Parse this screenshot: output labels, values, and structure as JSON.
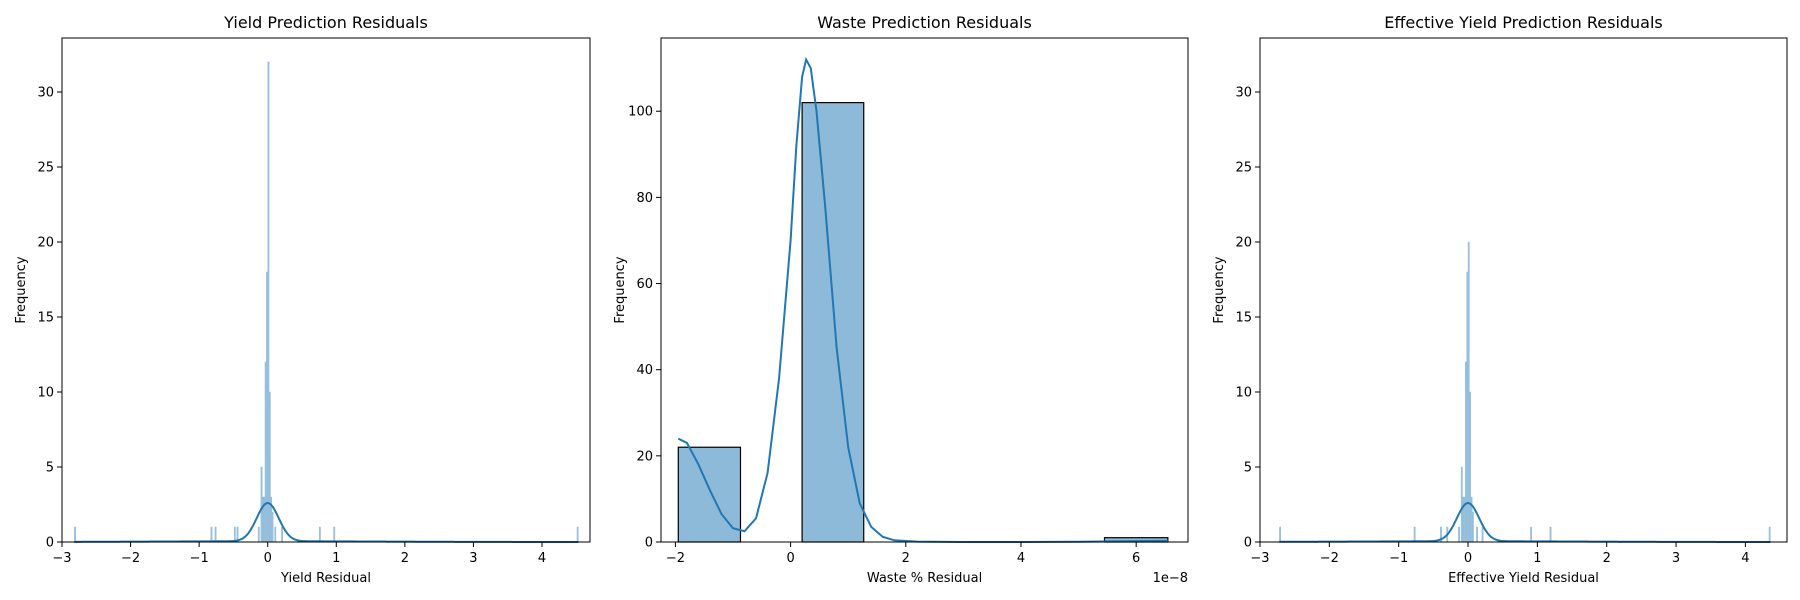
{
  "chart_data": [
    {
      "type": "histogram",
      "title": "Yield Prediction Residuals",
      "xlabel": "Yield Residual",
      "ylabel": "Frequency",
      "xlim": [
        -3.0,
        4.7
      ],
      "ylim": [
        0,
        33.6
      ],
      "xticks": [
        -3,
        -2,
        -1,
        0,
        1,
        2,
        3,
        4
      ],
      "yticks": [
        0,
        5,
        10,
        15,
        20,
        25,
        30
      ],
      "bars": [
        {
          "x0": -2.82,
          "x1": -2.8,
          "count": 1
        },
        {
          "x0": -0.83,
          "x1": -0.81,
          "count": 1
        },
        {
          "x0": -0.77,
          "x1": -0.75,
          "count": 1
        },
        {
          "x0": -0.49,
          "x1": -0.47,
          "count": 1
        },
        {
          "x0": -0.45,
          "x1": -0.43,
          "count": 1
        },
        {
          "x0": -0.14,
          "x1": -0.12,
          "count": 1
        },
        {
          "x0": -0.1,
          "x1": -0.08,
          "count": 5
        },
        {
          "x0": -0.08,
          "x1": -0.06,
          "count": 3
        },
        {
          "x0": -0.06,
          "x1": -0.04,
          "count": 3
        },
        {
          "x0": -0.04,
          "x1": -0.02,
          "count": 12
        },
        {
          "x0": -0.02,
          "x1": 0.0,
          "count": 18
        },
        {
          "x0": 0.0,
          "x1": 0.02,
          "count": 32
        },
        {
          "x0": 0.02,
          "x1": 0.04,
          "count": 10
        },
        {
          "x0": 0.04,
          "x1": 0.06,
          "count": 3
        },
        {
          "x0": 0.06,
          "x1": 0.08,
          "count": 2
        },
        {
          "x0": 0.1,
          "x1": 0.12,
          "count": 1
        },
        {
          "x0": 0.2,
          "x1": 0.22,
          "count": 1
        },
        {
          "x0": 0.75,
          "x1": 0.77,
          "count": 1
        },
        {
          "x0": 0.96,
          "x1": 0.98,
          "count": 1
        },
        {
          "x0": 4.51,
          "x1": 4.53,
          "count": 1
        }
      ],
      "kde": {
        "center": 0.0,
        "peak": 2.6,
        "sigma": 0.16,
        "tail_ratio": 0.02,
        "tail_sigma": 1.6
      }
    },
    {
      "type": "histogram",
      "title": "Waste Prediction Residuals",
      "xlabel": "Waste % Residual",
      "ylabel": "Frequency",
      "xlim": [
        -2.25,
        6.9
      ],
      "ylim": [
        0,
        117
      ],
      "xticks": [
        -2,
        0,
        2,
        4,
        6
      ],
      "yticks": [
        0,
        20,
        40,
        60,
        80,
        100
      ],
      "offset_text": "1e−8",
      "bars": [
        {
          "x0": -1.95,
          "x1": -0.87,
          "count": 22
        },
        {
          "x0": 0.2,
          "x1": 1.27,
          "count": 102
        },
        {
          "x0": 5.45,
          "x1": 6.55,
          "count": 1
        }
      ],
      "kde_points": [
        [
          -1.95,
          24
        ],
        [
          -1.8,
          23
        ],
        [
          -1.6,
          18
        ],
        [
          -1.4,
          12
        ],
        [
          -1.2,
          6.5
        ],
        [
          -1.0,
          3.2
        ],
        [
          -0.8,
          2.5
        ],
        [
          -0.6,
          5.5
        ],
        [
          -0.4,
          16
        ],
        [
          -0.2,
          38
        ],
        [
          0.0,
          70
        ],
        [
          0.1,
          92
        ],
        [
          0.2,
          108
        ],
        [
          0.27,
          112
        ],
        [
          0.35,
          110
        ],
        [
          0.45,
          100
        ],
        [
          0.6,
          78
        ],
        [
          0.8,
          45
        ],
        [
          1.0,
          22
        ],
        [
          1.2,
          9
        ],
        [
          1.4,
          3.5
        ],
        [
          1.6,
          1.2
        ],
        [
          1.8,
          0.4
        ],
        [
          2.2,
          0.1
        ],
        [
          3.0,
          0.0
        ],
        [
          4.0,
          0.0
        ],
        [
          5.0,
          0.05
        ],
        [
          6.0,
          0.2
        ],
        [
          6.55,
          0.3
        ]
      ]
    },
    {
      "type": "histogram",
      "title": "Effective Yield Prediction Residuals",
      "xlabel": "Effective Yield Residual",
      "ylabel": "Frequency",
      "xlim": [
        -3.0,
        4.6
      ],
      "ylim": [
        0,
        33.6
      ],
      "xticks": [
        -3,
        -2,
        -1,
        0,
        1,
        2,
        3,
        4
      ],
      "yticks": [
        0,
        5,
        10,
        15,
        20,
        25,
        30
      ],
      "bars": [
        {
          "x0": -2.72,
          "x1": -2.7,
          "count": 1
        },
        {
          "x0": -0.78,
          "x1": -0.76,
          "count": 1
        },
        {
          "x0": -0.4,
          "x1": -0.38,
          "count": 1
        },
        {
          "x0": -0.31,
          "x1": -0.29,
          "count": 1
        },
        {
          "x0": -0.14,
          "x1": -0.12,
          "count": 1
        },
        {
          "x0": -0.1,
          "x1": -0.08,
          "count": 5
        },
        {
          "x0": -0.08,
          "x1": -0.06,
          "count": 3
        },
        {
          "x0": -0.06,
          "x1": -0.04,
          "count": 3
        },
        {
          "x0": -0.04,
          "x1": -0.02,
          "count": 12
        },
        {
          "x0": -0.02,
          "x1": 0.0,
          "count": 18
        },
        {
          "x0": 0.0,
          "x1": 0.02,
          "count": 20
        },
        {
          "x0": 0.02,
          "x1": 0.04,
          "count": 10
        },
        {
          "x0": 0.04,
          "x1": 0.06,
          "count": 3
        },
        {
          "x0": 0.06,
          "x1": 0.08,
          "count": 2
        },
        {
          "x0": 0.12,
          "x1": 0.14,
          "count": 1
        },
        {
          "x0": 0.2,
          "x1": 0.22,
          "count": 1
        },
        {
          "x0": 0.9,
          "x1": 0.92,
          "count": 1
        },
        {
          "x0": 1.18,
          "x1": 1.2,
          "count": 1
        },
        {
          "x0": 4.34,
          "x1": 4.36,
          "count": 1
        }
      ],
      "kde": {
        "center": 0.0,
        "peak": 2.6,
        "sigma": 0.16,
        "tail_ratio": 0.02,
        "tail_sigma": 1.6
      }
    }
  ],
  "colors": {
    "bar_fill": "#8ebad9",
    "bar_edge": "#1f77b4",
    "bar_edge_dark": "#000000",
    "kde": "#1f77b4"
  }
}
